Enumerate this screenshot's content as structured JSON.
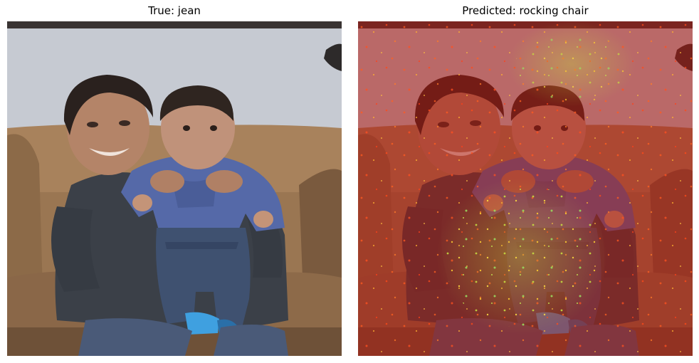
{
  "figure": {
    "left_panel": {
      "title": "True: jean",
      "overlay": "none"
    },
    "right_panel": {
      "title": "Predicted: rocking chair",
      "overlay": "saliency heatmap (red with yellow-green speckles)"
    }
  },
  "colors": {
    "background": "#ffffff",
    "wall": "#c9cdd5",
    "sofa": "#9a7652",
    "sofa_shadow": "#5f4430",
    "adult_sweater": "#3b4048",
    "baby_shirt": "#5569a8",
    "jeans": "#3f5170",
    "skin": "#b88a6e",
    "hair": "#2a211e",
    "sock": "#3fa0e0",
    "heat_overlay": "#b01a10",
    "heat_hot": "#c8e040"
  }
}
